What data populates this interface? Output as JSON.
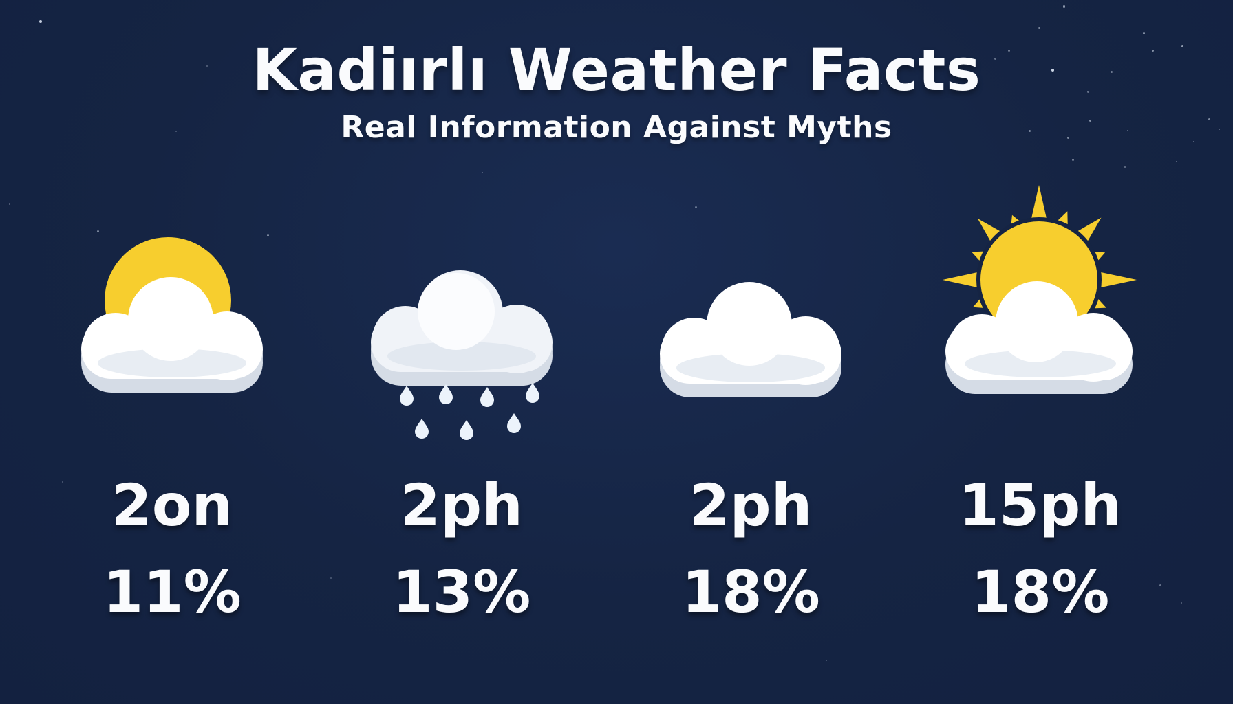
{
  "header": {
    "title": "Kadiırlı Weather Facts",
    "subtitle": "Real Information Against Myths"
  },
  "columns": [
    {
      "icon": "sun-behind-cloud-icon",
      "condition": "partly-cloudy",
      "label": "2on",
      "value": "11%"
    },
    {
      "icon": "rain-cloud-icon",
      "condition": "rain",
      "label": "2ph",
      "value": "13%"
    },
    {
      "icon": "cloud-icon",
      "condition": "cloudy",
      "label": "2ph",
      "value": "18%"
    },
    {
      "icon": "sun-rays-cloud-icon",
      "condition": "sunny-cloudy",
      "label": "15ph",
      "value": "18%"
    }
  ],
  "colors": {
    "background": "#152443",
    "sun": "#f7ce2e",
    "cloud": "#ffffff",
    "cloud_shade": "#d5dce6",
    "text": "#fafbfd"
  },
  "chart_data": {
    "type": "table",
    "title": "Kadiırlı Weather Facts",
    "subtitle": "Real Information Against Myths",
    "categories": [
      "2on",
      "2ph",
      "2ph",
      "15ph"
    ],
    "values": [
      11,
      13,
      18,
      18
    ],
    "icons": [
      "partly-cloudy",
      "rain",
      "cloudy",
      "sunny-cloudy"
    ],
    "value_unit": "%",
    "legend_position": "none",
    "grid": false
  }
}
